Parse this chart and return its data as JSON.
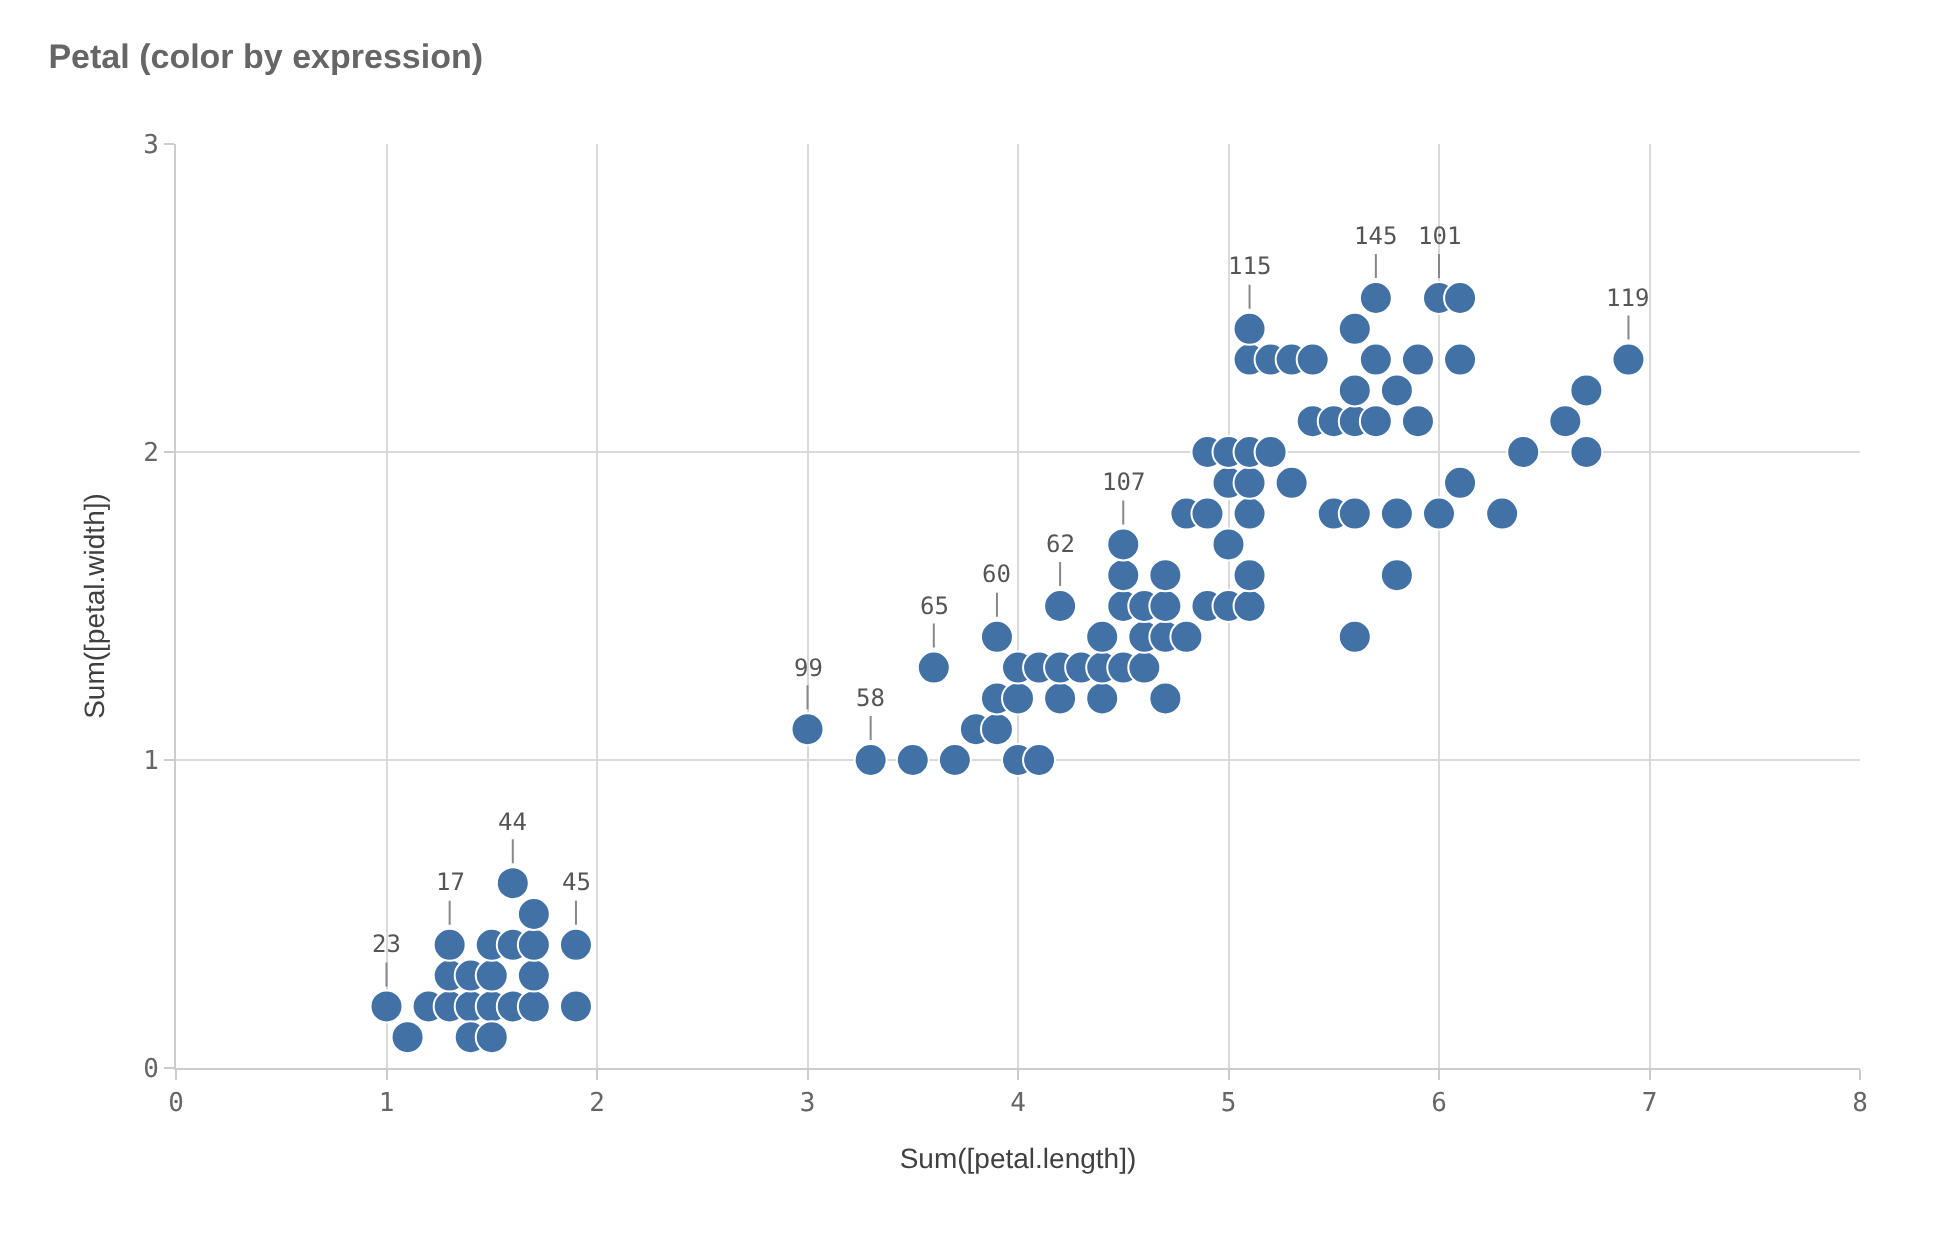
{
  "chart_data": {
    "type": "scatter",
    "title": "Petal (color by expression)",
    "xlabel": "Sum([petal.length])",
    "ylabel": "Sum([petal.width])",
    "x": [
      1.0,
      1.2,
      1.3,
      1.4,
      1.5,
      1.6,
      1.7,
      1.9,
      1.1,
      1.4,
      1.5,
      1.3,
      1.4,
      1.5,
      1.7,
      1.3,
      1.5,
      1.6,
      1.7,
      1.9,
      1.7,
      1.6,
      3.3,
      3.5,
      3.7,
      4.0,
      4.1,
      3.0,
      3.8,
      3.9,
      3.9,
      4.0,
      4.2,
      4.4,
      4.7,
      3.6,
      4.0,
      4.1,
      4.2,
      4.3,
      4.4,
      4.5,
      4.6,
      3.9,
      4.4,
      4.6,
      4.7,
      4.8,
      5.6,
      4.2,
      4.5,
      4.6,
      4.7,
      4.9,
      5.0,
      5.1,
      4.5,
      4.7,
      5.1,
      5.8,
      4.5,
      5.0,
      4.8,
      4.9,
      5.1,
      5.5,
      5.6,
      5.8,
      6.0,
      6.3,
      5.0,
      5.1,
      5.3,
      6.1,
      4.9,
      5.0,
      5.1,
      5.2,
      6.4,
      6.7,
      5.4,
      5.5,
      5.6,
      5.7,
      5.9,
      6.6,
      5.6,
      5.8,
      6.7,
      5.1,
      5.2,
      5.3,
      5.4,
      5.7,
      5.9,
      6.1,
      6.9,
      5.1,
      5.6,
      5.7,
      6.0,
      6.1
    ],
    "values": [
      0.2,
      0.2,
      0.2,
      0.2,
      0.2,
      0.2,
      0.2,
      0.2,
      0.1,
      0.1,
      0.1,
      0.3,
      0.3,
      0.3,
      0.3,
      0.4,
      0.4,
      0.4,
      0.4,
      0.4,
      0.5,
      0.6,
      1.0,
      1.0,
      1.0,
      1.0,
      1.0,
      1.1,
      1.1,
      1.1,
      1.2,
      1.2,
      1.2,
      1.2,
      1.2,
      1.3,
      1.3,
      1.3,
      1.3,
      1.3,
      1.3,
      1.3,
      1.3,
      1.4,
      1.4,
      1.4,
      1.4,
      1.4,
      1.4,
      1.5,
      1.5,
      1.5,
      1.5,
      1.5,
      1.5,
      1.5,
      1.6,
      1.6,
      1.6,
      1.6,
      1.7,
      1.7,
      1.8,
      1.8,
      1.8,
      1.8,
      1.8,
      1.8,
      1.8,
      1.8,
      1.9,
      1.9,
      1.9,
      1.9,
      2.0,
      2.0,
      2.0,
      2.0,
      2.0,
      2.0,
      2.1,
      2.1,
      2.1,
      2.1,
      2.1,
      2.1,
      2.2,
      2.2,
      2.2,
      2.3,
      2.3,
      2.3,
      2.3,
      2.3,
      2.3,
      2.3,
      2.3,
      2.4,
      2.4,
      2.5,
      2.5,
      2.5
    ],
    "color": "#4271a5",
    "marker": "circle",
    "xlim": [
      0,
      8
    ],
    "xticks": [
      0,
      1,
      2,
      3,
      4,
      5,
      6,
      7,
      8
    ],
    "ylim": [
      0,
      3
    ],
    "yticks": [
      0,
      1,
      2,
      3
    ],
    "grid": true,
    "legend": false,
    "annotations": [
      {
        "text": "23",
        "x": 1.0,
        "y": 0.2
      },
      {
        "text": "17",
        "x": 1.3,
        "y": 0.4
      },
      {
        "text": "44",
        "x": 1.6,
        "y": 0.6
      },
      {
        "text": "45",
        "x": 1.9,
        "y": 0.4
      },
      {
        "text": "99",
        "x": 3.0,
        "y": 1.1
      },
      {
        "text": "58",
        "x": 3.3,
        "y": 1.0
      },
      {
        "text": "65",
        "x": 3.6,
        "y": 1.3
      },
      {
        "text": "60",
        "x": 3.9,
        "y": 1.4
      },
      {
        "text": "62",
        "x": 4.2,
        "y": 1.5
      },
      {
        "text": "107",
        "x": 4.5,
        "y": 1.7
      },
      {
        "text": "115",
        "x": 5.1,
        "y": 2.4
      },
      {
        "text": "145",
        "x": 5.7,
        "y": 2.5
      },
      {
        "text": "101",
        "x": 6.0,
        "y": 2.5
      },
      {
        "text": "119",
        "x": 6.9,
        "y": 2.3
      }
    ]
  }
}
